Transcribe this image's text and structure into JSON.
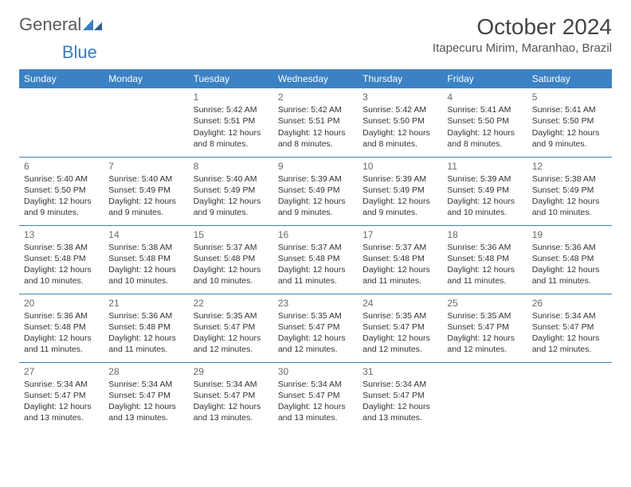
{
  "brand": {
    "part1": "General",
    "part2": "Blue"
  },
  "title": "October 2024",
  "location": "Itapecuru Mirim, Maranhao, Brazil",
  "colors": {
    "header_bg": "#3b82c4",
    "header_fg": "#ffffff",
    "border": "#3b82c4",
    "text": "#333333",
    "daynum": "#6a6a6a",
    "brand_gray": "#5a5a5a",
    "brand_blue": "#3b7bbf"
  },
  "day_headers": [
    "Sunday",
    "Monday",
    "Tuesday",
    "Wednesday",
    "Thursday",
    "Friday",
    "Saturday"
  ],
  "weeks": [
    [
      null,
      null,
      {
        "n": "1",
        "sr": "5:42 AM",
        "ss": "5:51 PM",
        "dl": "12 hours and 8 minutes."
      },
      {
        "n": "2",
        "sr": "5:42 AM",
        "ss": "5:51 PM",
        "dl": "12 hours and 8 minutes."
      },
      {
        "n": "3",
        "sr": "5:42 AM",
        "ss": "5:50 PM",
        "dl": "12 hours and 8 minutes."
      },
      {
        "n": "4",
        "sr": "5:41 AM",
        "ss": "5:50 PM",
        "dl": "12 hours and 8 minutes."
      },
      {
        "n": "5",
        "sr": "5:41 AM",
        "ss": "5:50 PM",
        "dl": "12 hours and 9 minutes."
      }
    ],
    [
      {
        "n": "6",
        "sr": "5:40 AM",
        "ss": "5:50 PM",
        "dl": "12 hours and 9 minutes."
      },
      {
        "n": "7",
        "sr": "5:40 AM",
        "ss": "5:49 PM",
        "dl": "12 hours and 9 minutes."
      },
      {
        "n": "8",
        "sr": "5:40 AM",
        "ss": "5:49 PM",
        "dl": "12 hours and 9 minutes."
      },
      {
        "n": "9",
        "sr": "5:39 AM",
        "ss": "5:49 PM",
        "dl": "12 hours and 9 minutes."
      },
      {
        "n": "10",
        "sr": "5:39 AM",
        "ss": "5:49 PM",
        "dl": "12 hours and 9 minutes."
      },
      {
        "n": "11",
        "sr": "5:39 AM",
        "ss": "5:49 PM",
        "dl": "12 hours and 10 minutes."
      },
      {
        "n": "12",
        "sr": "5:38 AM",
        "ss": "5:49 PM",
        "dl": "12 hours and 10 minutes."
      }
    ],
    [
      {
        "n": "13",
        "sr": "5:38 AM",
        "ss": "5:48 PM",
        "dl": "12 hours and 10 minutes."
      },
      {
        "n": "14",
        "sr": "5:38 AM",
        "ss": "5:48 PM",
        "dl": "12 hours and 10 minutes."
      },
      {
        "n": "15",
        "sr": "5:37 AM",
        "ss": "5:48 PM",
        "dl": "12 hours and 10 minutes."
      },
      {
        "n": "16",
        "sr": "5:37 AM",
        "ss": "5:48 PM",
        "dl": "12 hours and 11 minutes."
      },
      {
        "n": "17",
        "sr": "5:37 AM",
        "ss": "5:48 PM",
        "dl": "12 hours and 11 minutes."
      },
      {
        "n": "18",
        "sr": "5:36 AM",
        "ss": "5:48 PM",
        "dl": "12 hours and 11 minutes."
      },
      {
        "n": "19",
        "sr": "5:36 AM",
        "ss": "5:48 PM",
        "dl": "12 hours and 11 minutes."
      }
    ],
    [
      {
        "n": "20",
        "sr": "5:36 AM",
        "ss": "5:48 PM",
        "dl": "12 hours and 11 minutes."
      },
      {
        "n": "21",
        "sr": "5:36 AM",
        "ss": "5:48 PM",
        "dl": "12 hours and 11 minutes."
      },
      {
        "n": "22",
        "sr": "5:35 AM",
        "ss": "5:47 PM",
        "dl": "12 hours and 12 minutes."
      },
      {
        "n": "23",
        "sr": "5:35 AM",
        "ss": "5:47 PM",
        "dl": "12 hours and 12 minutes."
      },
      {
        "n": "24",
        "sr": "5:35 AM",
        "ss": "5:47 PM",
        "dl": "12 hours and 12 minutes."
      },
      {
        "n": "25",
        "sr": "5:35 AM",
        "ss": "5:47 PM",
        "dl": "12 hours and 12 minutes."
      },
      {
        "n": "26",
        "sr": "5:34 AM",
        "ss": "5:47 PM",
        "dl": "12 hours and 12 minutes."
      }
    ],
    [
      {
        "n": "27",
        "sr": "5:34 AM",
        "ss": "5:47 PM",
        "dl": "12 hours and 13 minutes."
      },
      {
        "n": "28",
        "sr": "5:34 AM",
        "ss": "5:47 PM",
        "dl": "12 hours and 13 minutes."
      },
      {
        "n": "29",
        "sr": "5:34 AM",
        "ss": "5:47 PM",
        "dl": "12 hours and 13 minutes."
      },
      {
        "n": "30",
        "sr": "5:34 AM",
        "ss": "5:47 PM",
        "dl": "12 hours and 13 minutes."
      },
      {
        "n": "31",
        "sr": "5:34 AM",
        "ss": "5:47 PM",
        "dl": "12 hours and 13 minutes."
      },
      null,
      null
    ]
  ],
  "labels": {
    "sunrise": "Sunrise:",
    "sunset": "Sunset:",
    "daylight": "Daylight:"
  }
}
